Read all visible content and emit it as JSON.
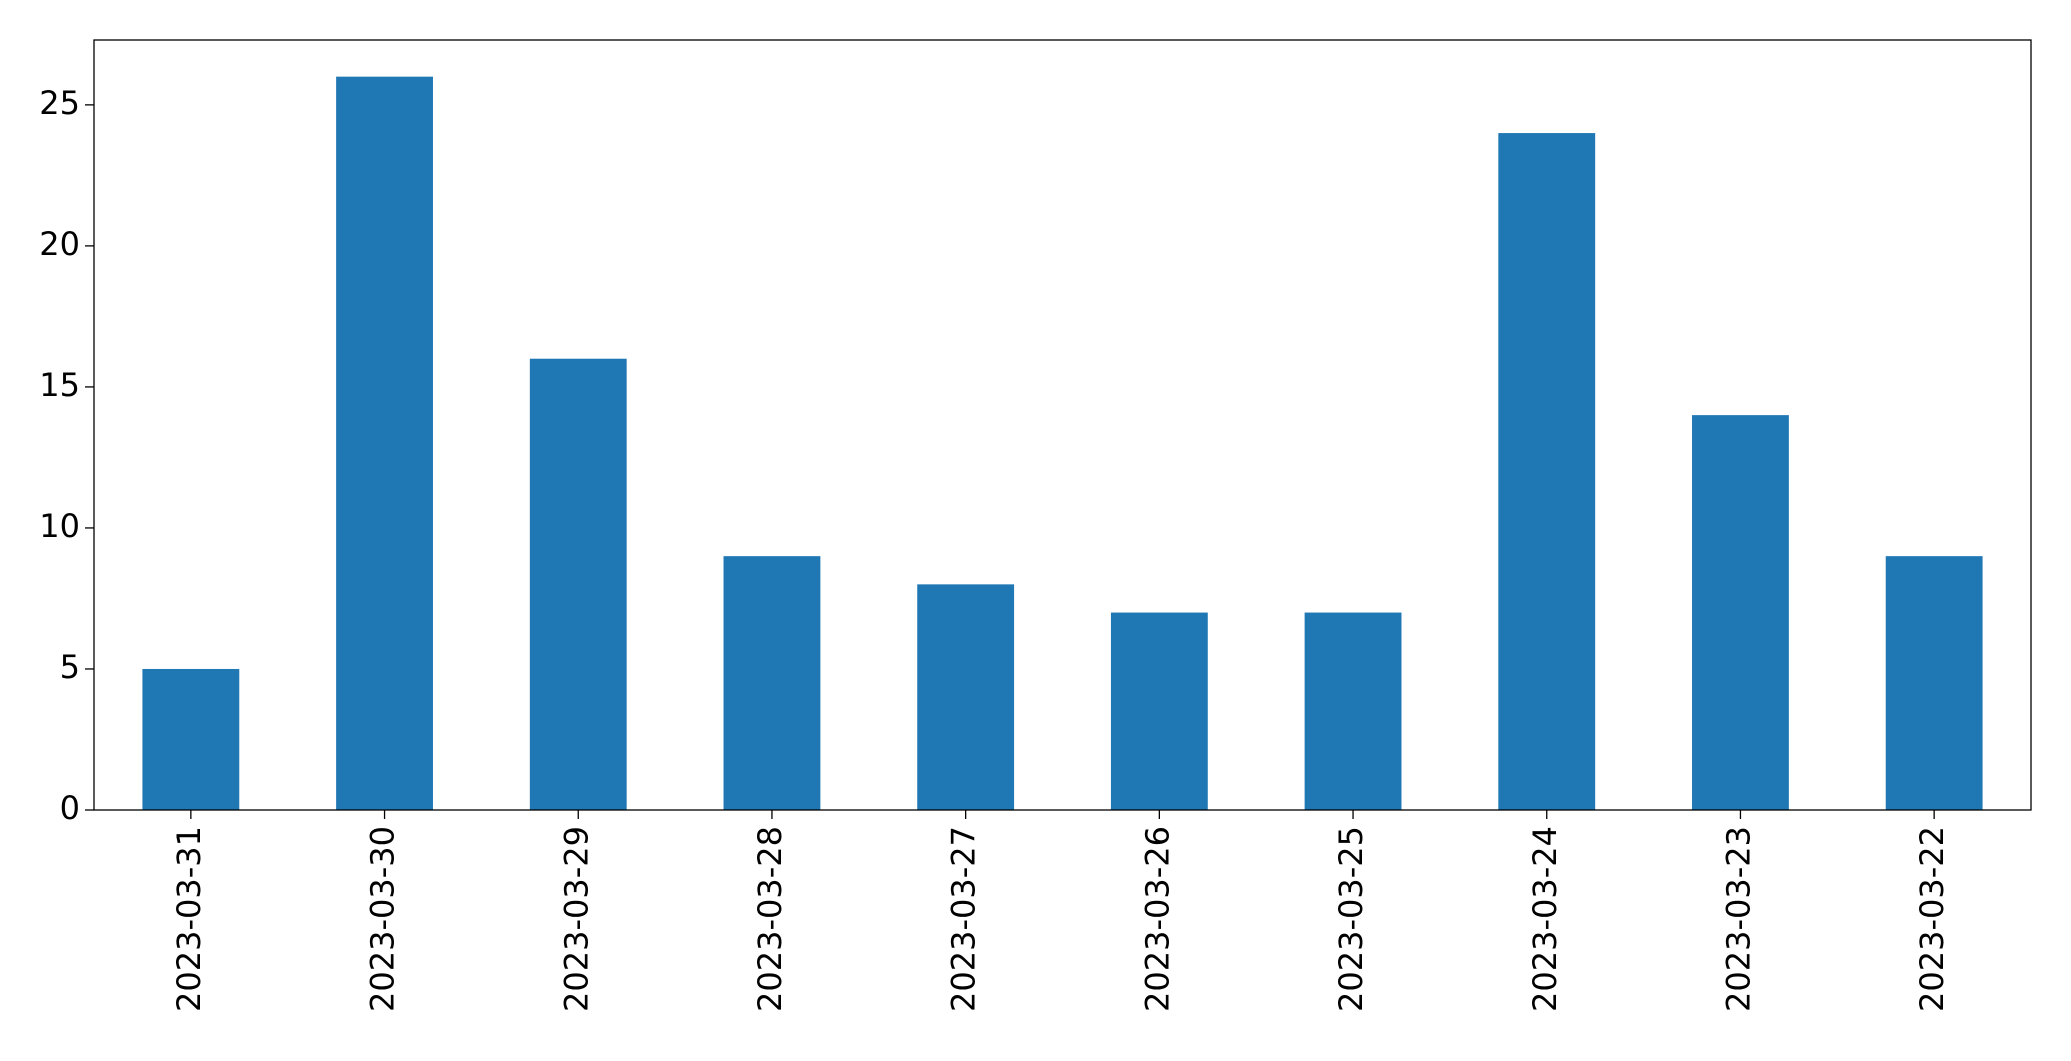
{
  "chart_data": {
    "type": "bar",
    "categories": [
      "2023-03-31",
      "2023-03-30",
      "2023-03-29",
      "2023-03-28",
      "2023-03-27",
      "2023-03-26",
      "2023-03-25",
      "2023-03-24",
      "2023-03-23",
      "2023-03-22"
    ],
    "values": [
      5,
      26,
      16,
      9,
      8,
      7,
      7,
      24,
      14,
      9
    ],
    "color": "#1f77b4",
    "ylim": [
      0,
      27.3
    ],
    "yticks": [
      0,
      5,
      10,
      15,
      20,
      25
    ],
    "grid": false
  }
}
